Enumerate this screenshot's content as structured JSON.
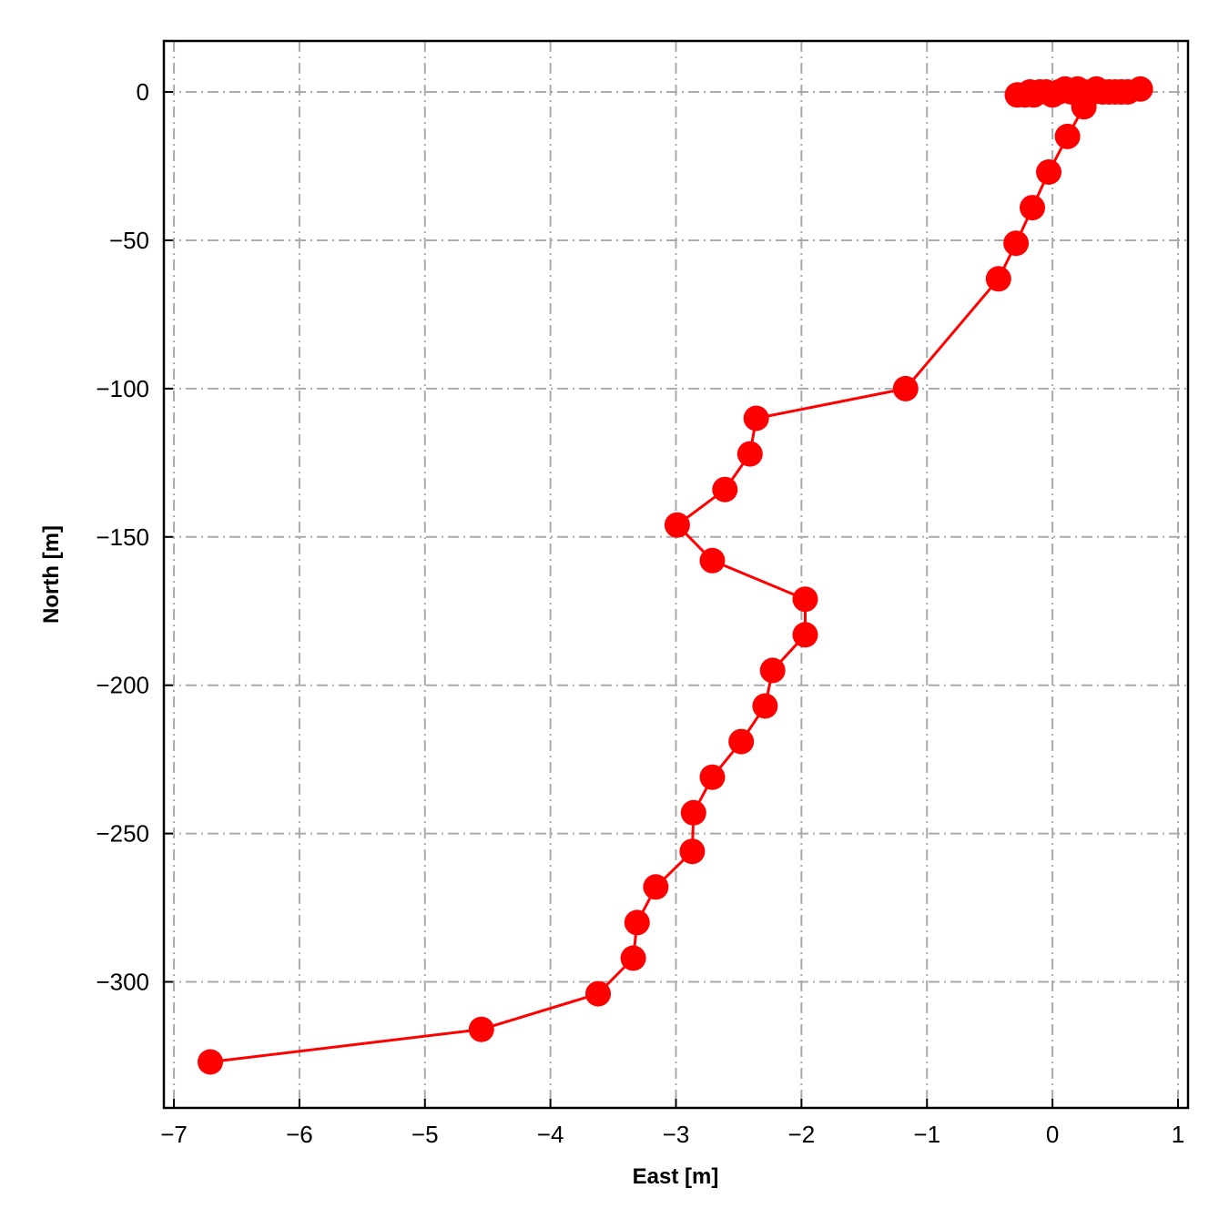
{
  "chart_data": {
    "type": "line",
    "title": "",
    "xlabel": "East [m]",
    "ylabel": "North [m]",
    "xlim": [
      -7.08,
      1.08
    ],
    "ylim": [
      -342.5,
      17.2
    ],
    "xticks": [
      -7,
      -6,
      -5,
      -4,
      -3,
      -2,
      -1,
      0,
      1
    ],
    "yticks": [
      0,
      -50,
      -100,
      -150,
      -200,
      -250,
      -300
    ],
    "xtick_labels": [
      "−7",
      "−6",
      "−5",
      "−4",
      "−3",
      "−2",
      "−1",
      "0",
      "1"
    ],
    "ytick_labels": [
      "0",
      "−50",
      "−100",
      "−150",
      "−200",
      "−250",
      "−300"
    ],
    "grid": true,
    "marker": "circle",
    "series": [
      {
        "color": "#ff0000",
        "x": [
          -0.28,
          -0.22,
          -0.18,
          -0.15,
          -0.1,
          -0.05,
          0.0,
          0.05,
          0.1,
          0.15,
          0.2,
          0.25,
          0.3,
          0.35,
          0.4,
          0.45,
          0.5,
          0.55,
          0.6,
          0.7,
          0.25,
          0.12,
          -0.03,
          -0.16,
          -0.29,
          -0.43,
          -1.17,
          -2.36,
          -2.41,
          -2.61,
          -2.99,
          -2.71,
          -1.97,
          -1.97,
          -2.23,
          -2.29,
          -2.48,
          -2.71,
          -2.86,
          -2.87,
          -3.16,
          -3.31,
          -3.34,
          -3.62,
          -4.55,
          -6.71
        ],
        "y": [
          -1,
          -1,
          0,
          -1,
          0,
          0,
          -1,
          0,
          1,
          0,
          1,
          0,
          0,
          1,
          0,
          0,
          0,
          0,
          0,
          1,
          -5,
          -15,
          -27,
          -39,
          -51,
          -63,
          -100,
          -110,
          -122,
          -134,
          -146,
          -158,
          -171,
          -183,
          -195,
          -207,
          -219,
          -231,
          -243,
          -256,
          -268,
          -280,
          -292,
          -304,
          -316,
          -327
        ]
      }
    ]
  }
}
